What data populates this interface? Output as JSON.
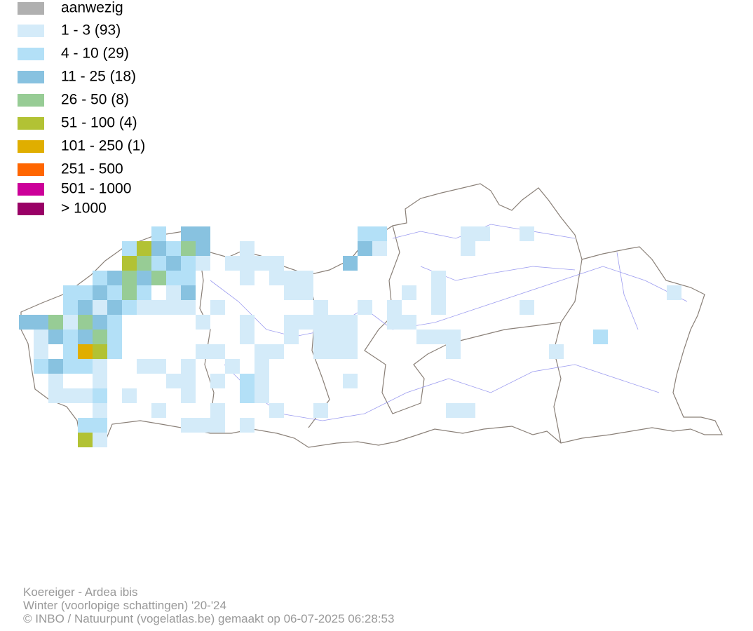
{
  "legend": {
    "items": [
      {
        "label": "aanwezig",
        "color": "#b0b0b0"
      },
      {
        "label": "1 - 3 (93)",
        "color": "#d4ebf9"
      },
      {
        "label": "4 - 10 (29)",
        "color": "#b3e0f7"
      },
      {
        "label": "11 - 25 (18)",
        "color": "#88c2e0"
      },
      {
        "label": "26 - 50 (8)",
        "color": "#97cc95"
      },
      {
        "label": "51 - 100 (4)",
        "color": "#b2c234"
      },
      {
        "label": "101 - 250 (1)",
        "color": "#e0ae00"
      },
      {
        "label": "251 - 500",
        "color": "#ff6600"
      },
      {
        "label": "501 - 1000",
        "color": "#cc0099"
      },
      {
        "label": "> 1000",
        "color": "#990066"
      }
    ]
  },
  "caption": {
    "species": "Koereiger - Ardea ibis",
    "period": "Winter (voorlopige schattingen) '20-'24",
    "credit": "© INBO / Natuurpunt (vogelatlas.be) gemaakt op 06-07-2025 06:28:53"
  }
}
